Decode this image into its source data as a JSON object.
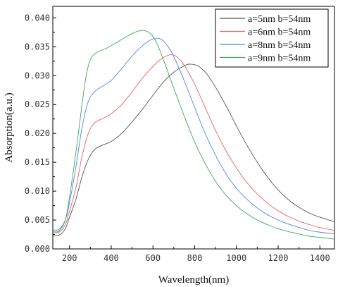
{
  "chart_data": {
    "type": "line",
    "title": "",
    "xlabel": "Wavelength(nm)",
    "ylabel": "Absorption(a.u.)",
    "xlim": [
      120,
      1470
    ],
    "ylim": [
      0.0,
      0.042
    ],
    "xticks": [
      200,
      400,
      600,
      800,
      1000,
      1200,
      1400
    ],
    "yticks": [
      0.0,
      0.005,
      0.01,
      0.015,
      0.02,
      0.025,
      0.03,
      0.035,
      0.04
    ],
    "xtick_labels": [
      "200",
      "400",
      "600",
      "800",
      "1000",
      "1200",
      "1400"
    ],
    "ytick_labels": [
      "0.000",
      "0.005",
      "0.010",
      "0.015",
      "0.020",
      "0.025",
      "0.030",
      "0.035",
      "0.040"
    ],
    "grid": false,
    "legend_position": "top-right",
    "series": [
      {
        "name": "a=5nm b=54nm",
        "color": "#555555",
        "points": [
          [
            120,
            0.0023
          ],
          [
            150,
            0.0024
          ],
          [
            180,
            0.0035
          ],
          [
            200,
            0.0055
          ],
          [
            230,
            0.0085
          ],
          [
            260,
            0.0125
          ],
          [
            290,
            0.0155
          ],
          [
            320,
            0.0172
          ],
          [
            360,
            0.018
          ],
          [
            400,
            0.0186
          ],
          [
            450,
            0.02
          ],
          [
            500,
            0.022
          ],
          [
            550,
            0.0242
          ],
          [
            600,
            0.0266
          ],
          [
            650,
            0.0289
          ],
          [
            700,
            0.0306
          ],
          [
            750,
            0.0317
          ],
          [
            780,
            0.032
          ],
          [
            820,
            0.0316
          ],
          [
            860,
            0.0302
          ],
          [
            900,
            0.028
          ],
          [
            950,
            0.0248
          ],
          [
            1000,
            0.0213
          ],
          [
            1050,
            0.018
          ],
          [
            1100,
            0.015
          ],
          [
            1150,
            0.0124
          ],
          [
            1200,
            0.0102
          ],
          [
            1250,
            0.0085
          ],
          [
            1300,
            0.0072
          ],
          [
            1350,
            0.0062
          ],
          [
            1400,
            0.0055
          ],
          [
            1470,
            0.0047
          ]
        ]
      },
      {
        "name": "a=6nm b=54nm",
        "color": "#e8615c",
        "points": [
          [
            120,
            0.0028
          ],
          [
            150,
            0.0029
          ],
          [
            180,
            0.0042
          ],
          [
            200,
            0.0065
          ],
          [
            230,
            0.0105
          ],
          [
            260,
            0.016
          ],
          [
            290,
            0.02
          ],
          [
            320,
            0.0218
          ],
          [
            360,
            0.0226
          ],
          [
            400,
            0.0234
          ],
          [
            450,
            0.025
          ],
          [
            500,
            0.0272
          ],
          [
            550,
            0.0296
          ],
          [
            600,
            0.0316
          ],
          [
            640,
            0.0329
          ],
          [
            680,
            0.0336
          ],
          [
            710,
            0.0334
          ],
          [
            750,
            0.0318
          ],
          [
            800,
            0.0285
          ],
          [
            850,
            0.0245
          ],
          [
            900,
            0.0205
          ],
          [
            950,
            0.017
          ],
          [
            1000,
            0.014
          ],
          [
            1050,
            0.0115
          ],
          [
            1100,
            0.0095
          ],
          [
            1150,
            0.0079
          ],
          [
            1200,
            0.0066
          ],
          [
            1250,
            0.0056
          ],
          [
            1300,
            0.0048
          ],
          [
            1350,
            0.0042
          ],
          [
            1400,
            0.0037
          ],
          [
            1470,
            0.0032
          ]
        ]
      },
      {
        "name": "a=8nm b=54nm",
        "color": "#4a86e8",
        "points": [
          [
            120,
            0.0033
          ],
          [
            150,
            0.0034
          ],
          [
            180,
            0.005
          ],
          [
            200,
            0.008
          ],
          [
            230,
            0.014
          ],
          [
            260,
            0.021
          ],
          [
            290,
            0.0255
          ],
          [
            320,
            0.0272
          ],
          [
            360,
            0.0282
          ],
          [
            400,
            0.0292
          ],
          [
            450,
            0.0312
          ],
          [
            500,
            0.0334
          ],
          [
            550,
            0.0352
          ],
          [
            590,
            0.0362
          ],
          [
            620,
            0.0365
          ],
          [
            650,
            0.036
          ],
          [
            690,
            0.034
          ],
          [
            740,
            0.03
          ],
          [
            800,
            0.0245
          ],
          [
            850,
            0.02
          ],
          [
            900,
            0.0162
          ],
          [
            950,
            0.013
          ],
          [
            1000,
            0.0105
          ],
          [
            1050,
            0.0086
          ],
          [
            1100,
            0.0071
          ],
          [
            1150,
            0.0059
          ],
          [
            1200,
            0.005
          ],
          [
            1250,
            0.0043
          ],
          [
            1300,
            0.0037
          ],
          [
            1350,
            0.0032
          ],
          [
            1400,
            0.0029
          ],
          [
            1470,
            0.0026
          ]
        ]
      },
      {
        "name": "a=9nm b=54nm",
        "color": "#3aa85a",
        "points": [
          [
            120,
            0.003
          ],
          [
            150,
            0.0031
          ],
          [
            180,
            0.005
          ],
          [
            200,
            0.009
          ],
          [
            230,
            0.0165
          ],
          [
            260,
            0.025
          ],
          [
            280,
            0.03
          ],
          [
            300,
            0.0328
          ],
          [
            330,
            0.034
          ],
          [
            380,
            0.0348
          ],
          [
            420,
            0.0356
          ],
          [
            470,
            0.0367
          ],
          [
            520,
            0.0376
          ],
          [
            560,
            0.0378
          ],
          [
            590,
            0.0372
          ],
          [
            620,
            0.0355
          ],
          [
            660,
            0.0318
          ],
          [
            700,
            0.0278
          ],
          [
            750,
            0.023
          ],
          [
            800,
            0.0185
          ],
          [
            850,
            0.0148
          ],
          [
            900,
            0.0117
          ],
          [
            950,
            0.0093
          ],
          [
            1000,
            0.0075
          ],
          [
            1050,
            0.0061
          ],
          [
            1100,
            0.005
          ],
          [
            1150,
            0.0042
          ],
          [
            1200,
            0.0035
          ],
          [
            1250,
            0.003
          ],
          [
            1300,
            0.0026
          ],
          [
            1350,
            0.0022
          ],
          [
            1400,
            0.002
          ],
          [
            1470,
            0.0017
          ]
        ]
      }
    ]
  }
}
